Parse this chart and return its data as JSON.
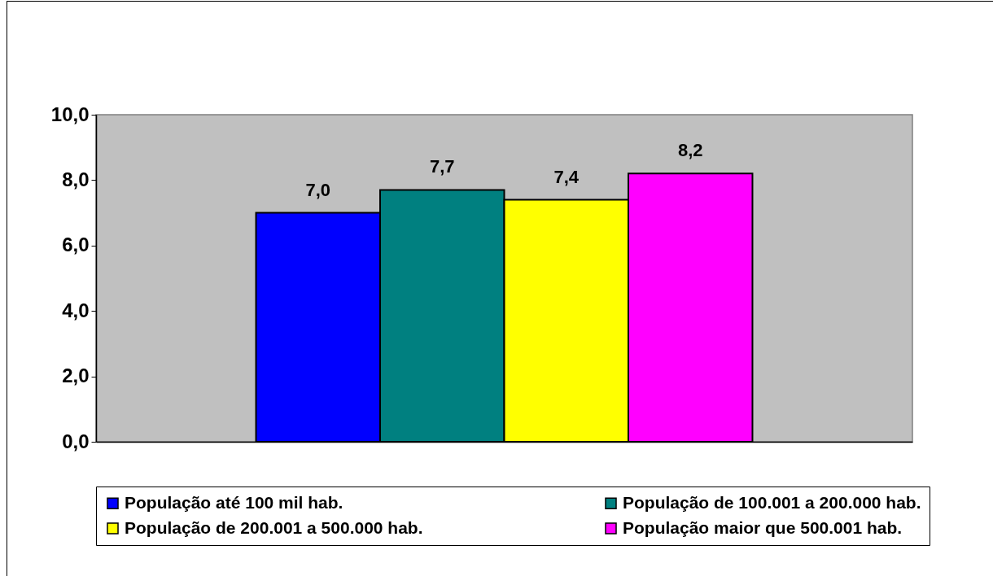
{
  "chart_data": {
    "type": "bar",
    "categories": [
      null
    ],
    "series": [
      {
        "name": "População até 100 mil hab.",
        "color": "#0000ff",
        "values": [
          7.0
        ],
        "value_labels": [
          "7,0"
        ]
      },
      {
        "name": "População de 100.001 a 200.000 hab.",
        "color": "#008080",
        "values": [
          7.7
        ],
        "value_labels": [
          "7,7"
        ]
      },
      {
        "name": "População de 200.001 a 500.000 hab.",
        "color": "#ffff00",
        "values": [
          7.4
        ],
        "value_labels": [
          "7,4"
        ]
      },
      {
        "name": "População maior que 500.001 hab.",
        "color": "#ff00ff",
        "values": [
          8.2
        ],
        "value_labels": [
          "8,2"
        ]
      }
    ],
    "ylim": [
      0,
      10
    ],
    "yticks": [
      {
        "value": 0,
        "label": "0,0"
      },
      {
        "value": 2,
        "label": "2,0"
      },
      {
        "value": 4,
        "label": "4,0"
      },
      {
        "value": 6,
        "label": "6,0"
      },
      {
        "value": 8,
        "label": "8,0"
      },
      {
        "value": 10,
        "label": "10,0"
      }
    ],
    "grid": false,
    "legend": "bottom",
    "tick_labels": "y"
  }
}
